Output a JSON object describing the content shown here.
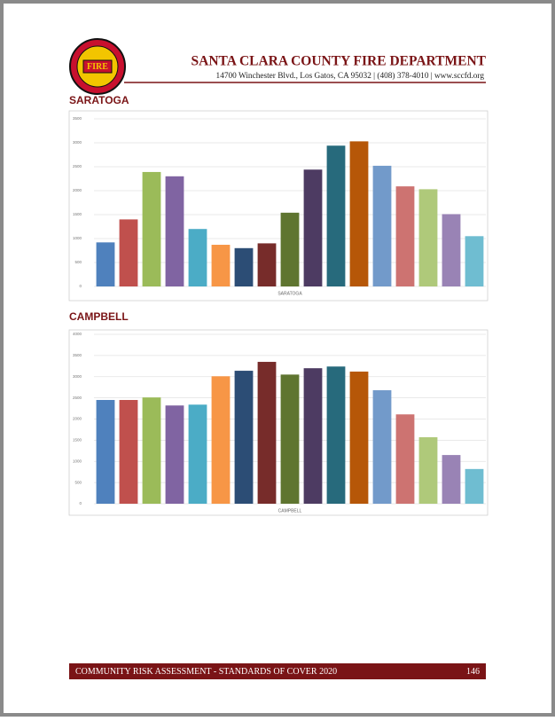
{
  "header": {
    "logo_text": "FIRE",
    "title": "SANTA CLARA COUNTY FIRE DEPARTMENT",
    "address": "14700 Winchester Blvd., Los Gatos, CA 95032 | (408) 378-4010 | www.sccfd.org"
  },
  "sections": [
    {
      "heading": "SARATOGA"
    },
    {
      "heading": "CAMPBELL"
    }
  ],
  "chart_data": [
    {
      "type": "bar",
      "x_label": "SARATOGA",
      "values": [
        920,
        1400,
        2390,
        2300,
        1200,
        870,
        800,
        900,
        1540,
        2440,
        2940,
        3030,
        2520,
        2090,
        2030,
        1510,
        1050
      ],
      "colors": [
        "#4f81bd",
        "#c0504d",
        "#9bbb59",
        "#8064a2",
        "#4bacc6",
        "#f79646",
        "#2c4d75",
        "#772c2a",
        "#5f7530",
        "#4d3b62",
        "#276a7c",
        "#b65708",
        "#729aca",
        "#cd7371",
        "#afc97a",
        "#9983b5",
        "#6fbdd1"
      ],
      "ylim": [
        0,
        3500
      ],
      "yticks": [
        0,
        500,
        1000,
        1500,
        2000,
        2500,
        3000,
        3500
      ],
      "grid": true
    },
    {
      "type": "bar",
      "x_label": "CAMPBELL",
      "values": [
        2450,
        2450,
        2510,
        2320,
        2340,
        3010,
        3140,
        3350,
        3050,
        3200,
        3240,
        3120,
        2680,
        2110,
        1570,
        1150,
        820
      ],
      "colors": [
        "#4f81bd",
        "#c0504d",
        "#9bbb59",
        "#8064a2",
        "#4bacc6",
        "#f79646",
        "#2c4d75",
        "#772c2a",
        "#5f7530",
        "#4d3b62",
        "#276a7c",
        "#b65708",
        "#729aca",
        "#cd7371",
        "#afc97a",
        "#9983b5",
        "#6fbdd1"
      ],
      "ylim": [
        0,
        4000
      ],
      "yticks": [
        0,
        500,
        1000,
        1500,
        2000,
        2500,
        3000,
        3500,
        4000
      ],
      "grid": true
    }
  ],
  "footer": {
    "text": "COMMUNITY RISK ASSESSMENT - STANDARDS OF COVER 2020",
    "page": "146"
  }
}
